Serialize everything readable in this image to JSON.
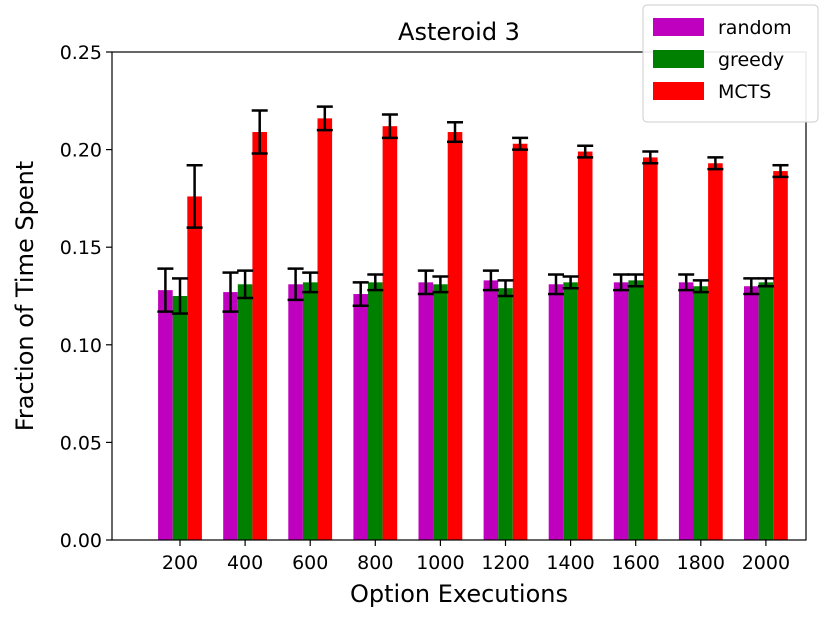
{
  "chart_data": {
    "type": "bar",
    "title": "Asteroid 3",
    "xlabel": "Option Executions",
    "ylabel": "Fraction of Time Spent",
    "categories": [
      "200",
      "400",
      "600",
      "800",
      "1000",
      "1200",
      "1400",
      "1600",
      "1800",
      "2000"
    ],
    "ylim": [
      0,
      0.25
    ],
    "yticks": [
      "0.00",
      "0.05",
      "0.10",
      "0.15",
      "0.20",
      "0.25"
    ],
    "grid": false,
    "legend_position": "top-right",
    "series": [
      {
        "name": "random",
        "color": "#bf00bf",
        "values": [
          0.128,
          0.127,
          0.131,
          0.126,
          0.132,
          0.133,
          0.131,
          0.132,
          0.132,
          0.13
        ],
        "errors": [
          0.011,
          0.01,
          0.008,
          0.006,
          0.006,
          0.005,
          0.005,
          0.004,
          0.004,
          0.004
        ]
      },
      {
        "name": "greedy",
        "color": "#008000",
        "values": [
          0.125,
          0.131,
          0.132,
          0.132,
          0.131,
          0.129,
          0.132,
          0.133,
          0.13,
          0.132
        ],
        "errors": [
          0.009,
          0.007,
          0.005,
          0.004,
          0.004,
          0.004,
          0.003,
          0.003,
          0.003,
          0.002
        ]
      },
      {
        "name": "MCTS",
        "color": "#ff0000",
        "values": [
          0.176,
          0.209,
          0.216,
          0.212,
          0.209,
          0.203,
          0.199,
          0.196,
          0.193,
          0.189
        ],
        "errors": [
          0.016,
          0.011,
          0.006,
          0.006,
          0.005,
          0.003,
          0.003,
          0.003,
          0.003,
          0.003
        ]
      }
    ]
  }
}
